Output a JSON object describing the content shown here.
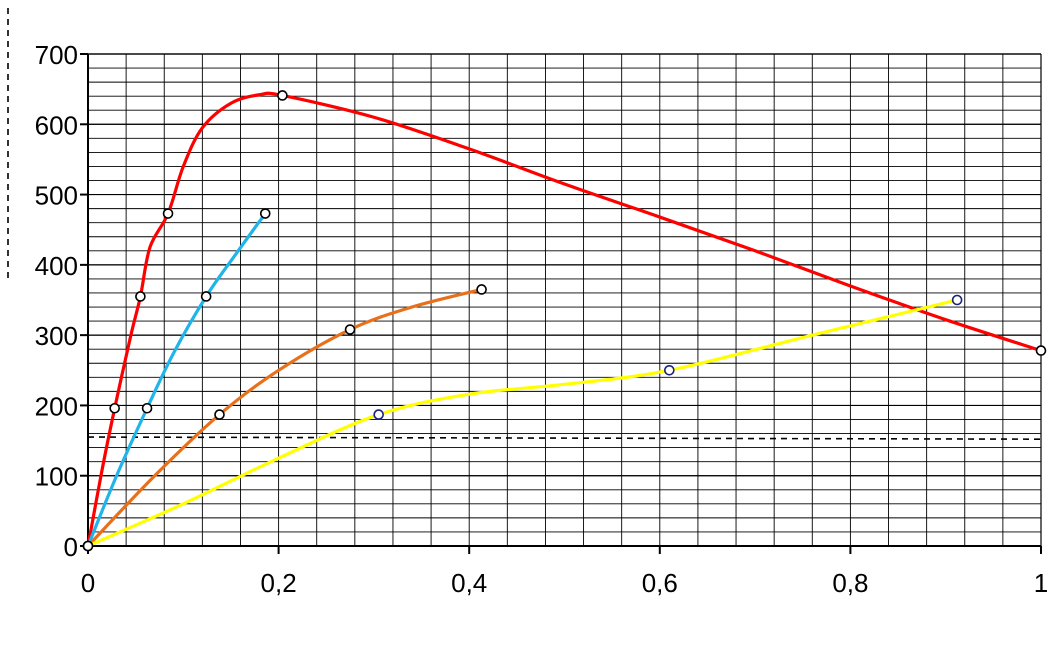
{
  "chart_data": {
    "type": "line",
    "title": "",
    "xlabel": "",
    "ylabel": "",
    "xlim": [
      0,
      1
    ],
    "ylim": [
      0,
      700
    ],
    "x_ticks": [
      "0",
      "0,2",
      "0,4",
      "0,6",
      "0,8",
      "1"
    ],
    "x_tick_values": [
      0,
      0.2,
      0.4,
      0.6,
      0.8,
      1.0
    ],
    "y_ticks": [
      "0",
      "100",
      "200",
      "300",
      "400",
      "500",
      "600",
      "700"
    ],
    "y_tick_values": [
      0,
      100,
      200,
      300,
      400,
      500,
      600,
      700
    ],
    "grid": true,
    "legend": "none",
    "reference_line": {
      "style": "dashed",
      "points": [
        [
          0,
          155
        ],
        [
          1,
          152
        ]
      ],
      "color": "#000000"
    },
    "series": [
      {
        "color": "#ff0000",
        "markers": [
          [
            0,
            0
          ],
          [
            0.028,
            196
          ],
          [
            0.055,
            355
          ],
          [
            0.084,
            473
          ],
          [
            0.204,
            641
          ],
          [
            1.0,
            278
          ]
        ],
        "curve": [
          [
            0,
            0
          ],
          [
            0.015,
            110
          ],
          [
            0.028,
            196
          ],
          [
            0.045,
            300
          ],
          [
            0.055,
            355
          ],
          [
            0.065,
            425
          ],
          [
            0.084,
            473
          ],
          [
            0.1,
            540
          ],
          [
            0.12,
            595
          ],
          [
            0.15,
            630
          ],
          [
            0.18,
            642
          ],
          [
            0.204,
            641
          ],
          [
            0.3,
            610
          ],
          [
            0.4,
            565
          ],
          [
            0.5,
            515
          ],
          [
            0.6,
            468
          ],
          [
            0.7,
            420
          ],
          [
            0.8,
            370
          ],
          [
            0.9,
            322
          ],
          [
            1.0,
            278
          ]
        ]
      },
      {
        "color": "#1fb4ea",
        "markers": [
          [
            0,
            0
          ],
          [
            0.062,
            196
          ],
          [
            0.124,
            355
          ],
          [
            0.186,
            473
          ]
        ],
        "curve": [
          [
            0,
            0
          ],
          [
            0.03,
            100
          ],
          [
            0.062,
            196
          ],
          [
            0.09,
            275
          ],
          [
            0.124,
            355
          ],
          [
            0.155,
            415
          ],
          [
            0.186,
            473
          ]
        ]
      },
      {
        "color": "#e8701a",
        "markers": [
          [
            0,
            0
          ],
          [
            0.138,
            187
          ],
          [
            0.275,
            308
          ],
          [
            0.413,
            365
          ]
        ],
        "curve": [
          [
            0,
            0
          ],
          [
            0.07,
            100
          ],
          [
            0.138,
            187
          ],
          [
            0.2,
            250
          ],
          [
            0.275,
            308
          ],
          [
            0.34,
            340
          ],
          [
            0.413,
            365
          ]
        ]
      },
      {
        "color": "#ffff00",
        "markers": [
          [
            0,
            0
          ],
          [
            0.305,
            187
          ],
          [
            0.61,
            250
          ],
          [
            0.912,
            350
          ]
        ],
        "curve": [
          [
            0,
            0
          ],
          [
            0.1,
            60
          ],
          [
            0.2,
            125
          ],
          [
            0.305,
            187
          ],
          [
            0.4,
            216
          ],
          [
            0.5,
            230
          ],
          [
            0.61,
            250
          ],
          [
            0.76,
            300
          ],
          [
            0.912,
            350
          ]
        ]
      }
    ]
  }
}
